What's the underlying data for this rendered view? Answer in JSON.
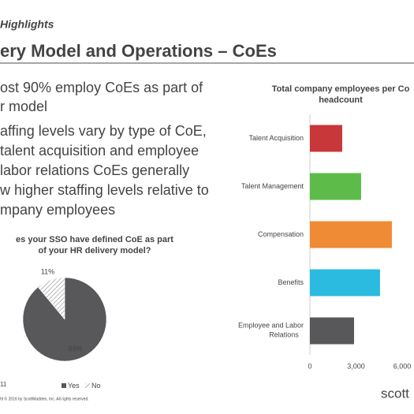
{
  "section": "Highlights",
  "title": "ery Model and Operations – CoEs",
  "bullets": [
    [
      "ost 90% employ CoEs as part of",
      "r model"
    ],
    [
      "affing levels vary by type of CoE,",
      "talent acquisition and employee",
      "labor relations CoEs generally",
      "w higher staffing levels relative to",
      "mpany employees"
    ]
  ],
  "footer": {
    "page": "11",
    "copyright": "ht © 2016 by ScottMadden, Inc. All rights reserved.",
    "logo": "scott"
  },
  "chart_data": [
    {
      "type": "pie",
      "title": [
        "es your SSO have defined CoE as part",
        "of your HR delivery model?"
      ],
      "categories": [
        "Yes",
        "No"
      ],
      "values": [
        89,
        11
      ],
      "value_labels": [
        "89%",
        "11%"
      ],
      "colors": [
        "#58585a",
        "#ffffff"
      ],
      "legend": "bottom"
    },
    {
      "type": "barh",
      "title": [
        "Total company employees per Co",
        "headcount"
      ],
      "categories": [
        "Talent Acquisition",
        "Talent Management",
        "Compensation",
        "Benefits",
        "Employee and Labor Relations"
      ],
      "values": [
        2100,
        3330,
        5330,
        4560,
        2870
      ],
      "colors": [
        "#c8373a",
        "#5dbb4a",
        "#ef8a35",
        "#2bbbe0",
        "#58585a"
      ],
      "xlim": [
        0,
        6000
      ],
      "xticks": [
        0,
        {
          "value": 3000,
          "label": "3,000"
        },
        {
          "value": 6000,
          "label": "6,000"
        }
      ],
      "grid": false
    }
  ]
}
